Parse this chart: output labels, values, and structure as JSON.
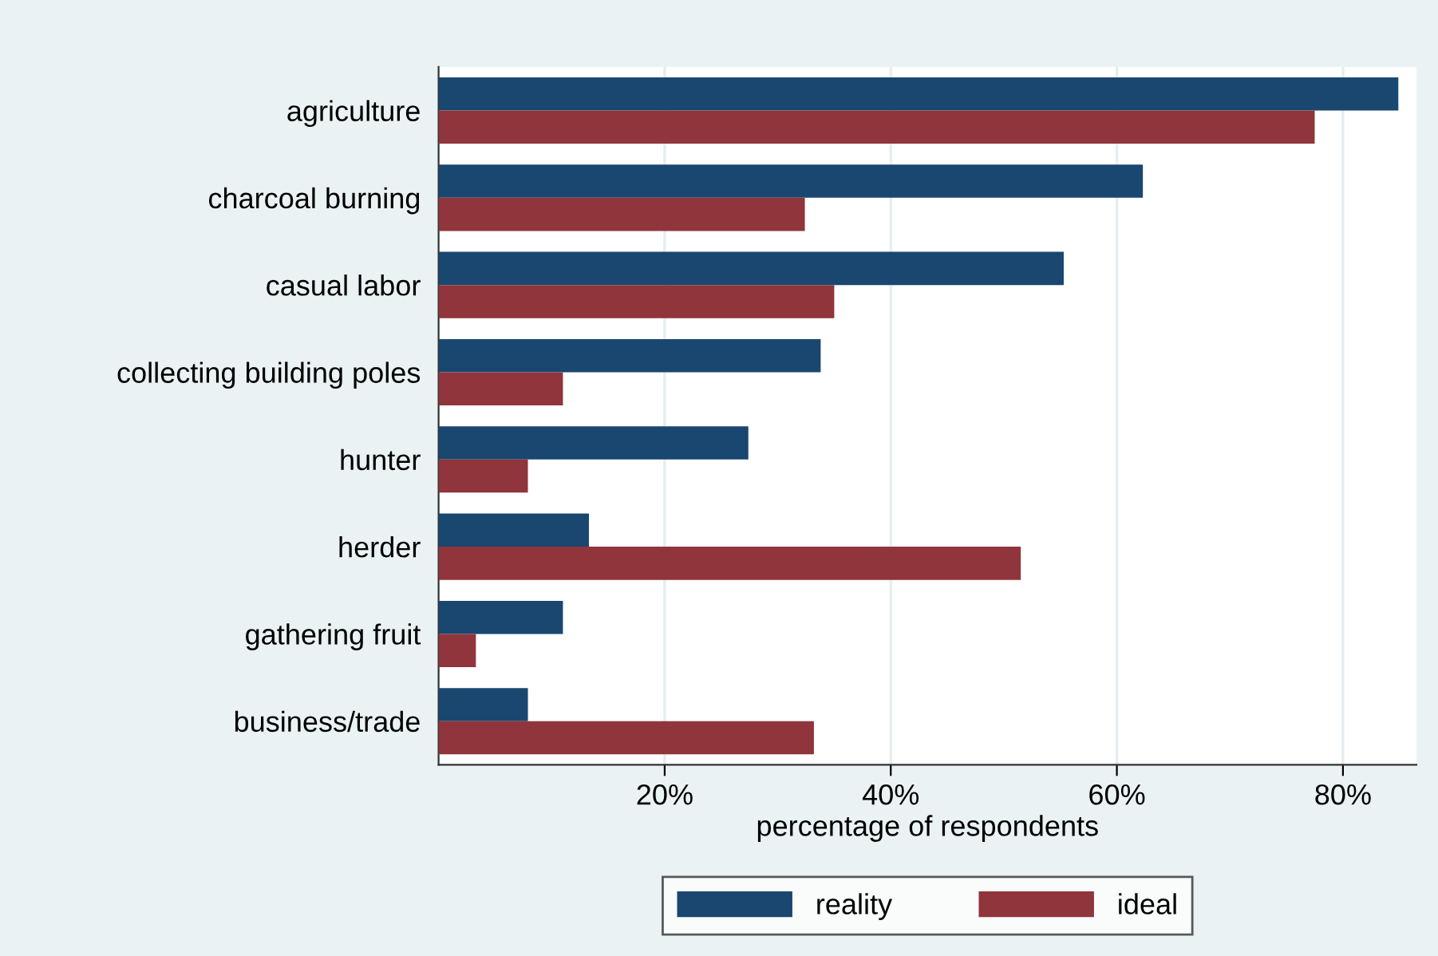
{
  "chart_data": {
    "type": "bar",
    "orientation": "horizontal",
    "xlabel": "percentage of respondents",
    "categories": [
      "agriculture",
      "charcoal burning",
      "casual labor",
      "collecting building poles",
      "hunter",
      "herder",
      "gathering fruit",
      "business/trade"
    ],
    "series": [
      {
        "name": "reality",
        "color": "#1a476f",
        "values": [
          84.9,
          62.3,
          55.3,
          33.8,
          27.4,
          13.3,
          11.0,
          7.9
        ]
      },
      {
        "name": "ideal",
        "color": "#90353b",
        "values": [
          77.5,
          32.4,
          35.0,
          11.0,
          7.9,
          51.5,
          3.3,
          33.2
        ]
      }
    ],
    "xlim": [
      0,
      86.5
    ],
    "xticks": [
      {
        "value": 20,
        "label": "20%"
      },
      {
        "value": 40,
        "label": "40%"
      },
      {
        "value": 60,
        "label": "60%"
      },
      {
        "value": 80,
        "label": "80%"
      }
    ],
    "grid": "x",
    "legend": "bottom"
  }
}
